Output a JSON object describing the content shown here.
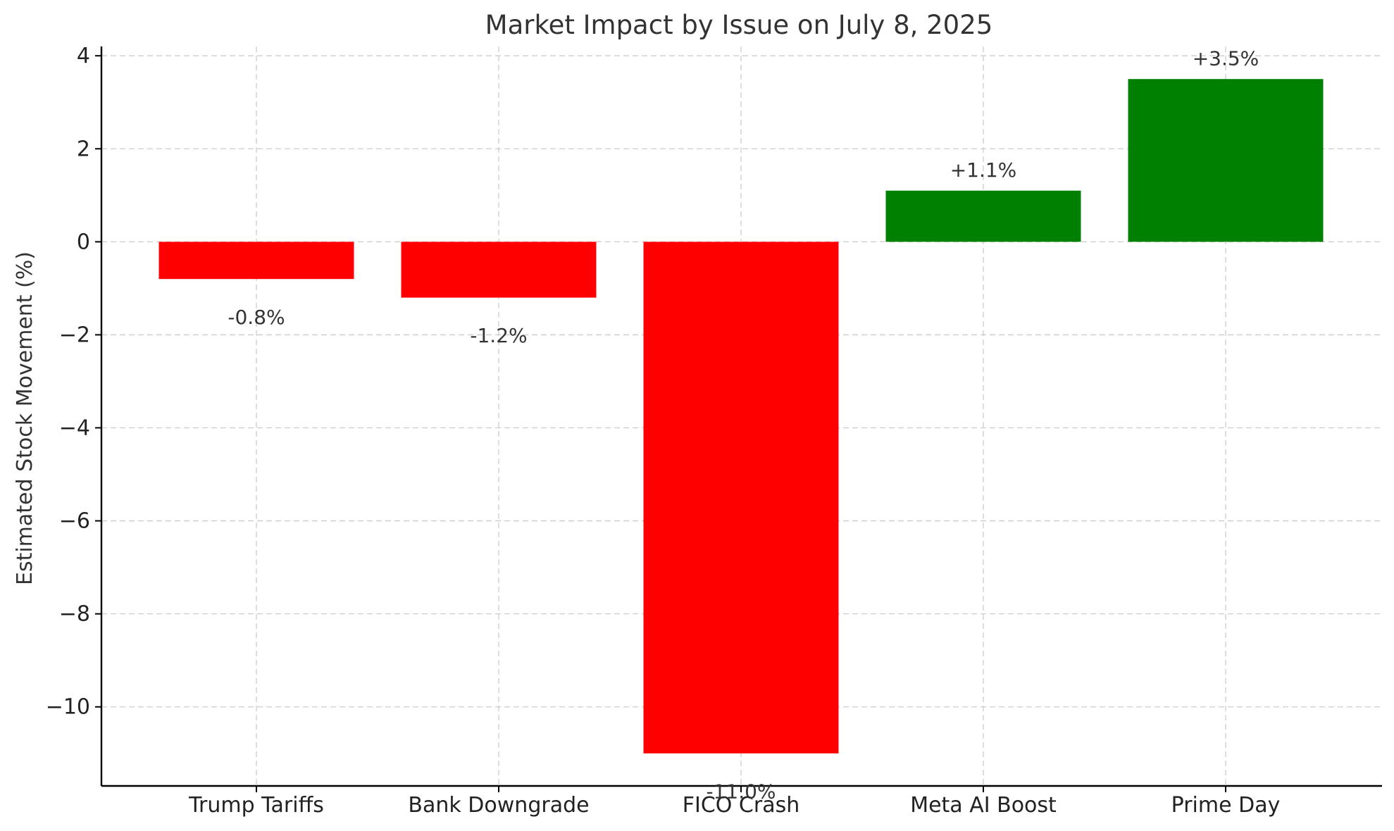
{
  "chart_data": {
    "type": "bar",
    "title": "Market Impact by Issue on July 8, 2025",
    "xlabel": "",
    "ylabel": "Estimated Stock Movement (%)",
    "categories": [
      "Trump Tariffs",
      "Bank Downgrade",
      "FICO Crash",
      "Meta AI Boost",
      "Prime Day"
    ],
    "values": [
      -0.8,
      -1.2,
      -11.0,
      1.1,
      3.5
    ],
    "data_labels": [
      "-0.8%",
      "-1.2%",
      "-11.0%",
      "+1.1%",
      "+3.5%"
    ],
    "bar_colors": [
      "#ff0000",
      "#ff0000",
      "#ff0000",
      "#008000",
      "#008000"
    ],
    "ylim": [
      -11.7,
      4.2
    ],
    "yticks": [
      4,
      2,
      0,
      -2,
      -4,
      -6,
      -8,
      -10
    ],
    "ytick_labels": [
      "4",
      "2",
      "0",
      "−2",
      "−4",
      "−6",
      "−8",
      "−10"
    ],
    "grid": true,
    "legend": "none"
  }
}
